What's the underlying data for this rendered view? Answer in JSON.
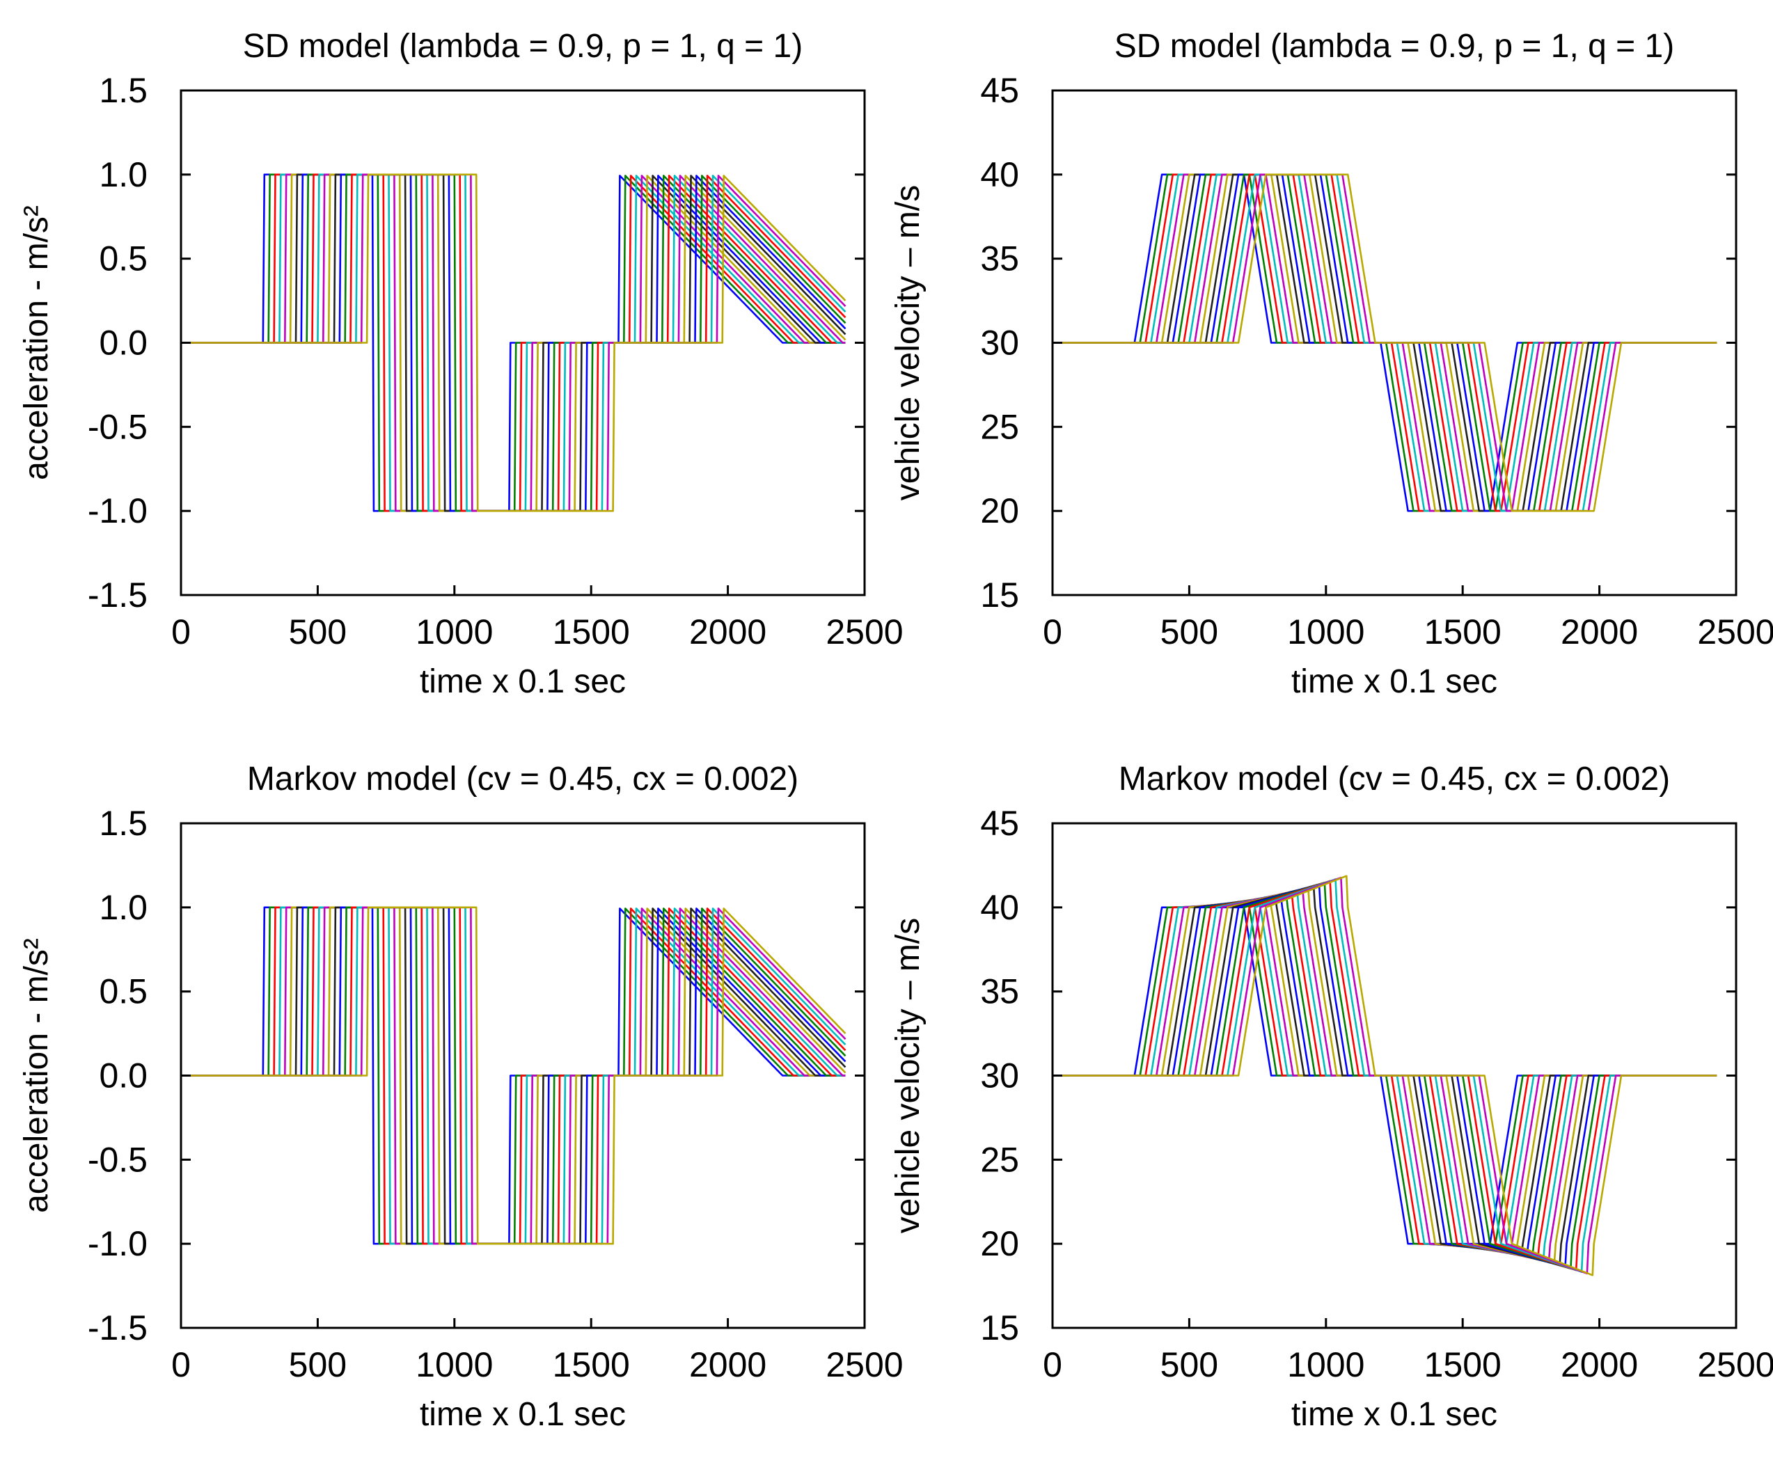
{
  "figure": {
    "panels": [
      {
        "id": "sd-acceleration",
        "title": "SD model (lambda = 0.9, p = 1, q = 1)",
        "xlabel": "time x 0.1 sec",
        "ylabel": "acceleration -  m/s²",
        "xticks": [
          "0",
          "500",
          "1000",
          "1500",
          "2000",
          "2500"
        ],
        "yticks": [
          "1.5",
          "1.0",
          "0.5",
          "0.0",
          "-0.5",
          "-1.0",
          "-1.5"
        ]
      },
      {
        "id": "sd-velocity",
        "title": "SD model (lambda = 0.9, p = 1, q = 1)",
        "xlabel": "time x 0.1 sec",
        "ylabel": "vehicle velocity – m/s",
        "xticks": [
          "0",
          "500",
          "1000",
          "1500",
          "2000",
          "2500"
        ],
        "yticks": [
          "45",
          "40",
          "35",
          "30",
          "25",
          "20",
          "15"
        ]
      },
      {
        "id": "markov-acceleration",
        "title": "Markov model (cv = 0.45, cx = 0.002)",
        "xlabel": "time x 0.1 sec",
        "ylabel": "acceleration -  m/s²",
        "xticks": [
          "0",
          "500",
          "1000",
          "1500",
          "2000",
          "2500"
        ],
        "yticks": [
          "1.5",
          "1.0",
          "0.5",
          "0.0",
          "-0.5",
          "-1.0",
          "-1.5"
        ]
      },
      {
        "id": "markov-velocity",
        "title": "Markov model (cv = 0.45, cx = 0.002)",
        "xlabel": "time x 0.1 sec",
        "ylabel": "vehicle velocity – m/s",
        "xticks": [
          "0",
          "500",
          "1000",
          "1500",
          "2000",
          "2500"
        ],
        "yticks": [
          "45",
          "40",
          "35",
          "30",
          "25",
          "20",
          "15"
        ]
      }
    ]
  },
  "chart_data": [
    {
      "type": "line",
      "title": "SD model (lambda = 0.9, p = 1, q = 1)",
      "xlabel": "time x 0.1 sec",
      "ylabel": "acceleration -  m/s²",
      "xlim": [
        0,
        2500
      ],
      "ylim": [
        -1.5,
        1.5
      ],
      "x_ticks": [
        0,
        500,
        1000,
        1500,
        2000,
        2500
      ],
      "y_ticks": [
        -1.5,
        -1.0,
        -0.5,
        0.0,
        0.5,
        1.0,
        1.5
      ],
      "grid": false,
      "legend": "none",
      "vehicle_count": 20,
      "vehicle_delay": 20,
      "series_colors": [
        "#0000ff",
        "#008000",
        "#ff0000",
        "#00bcbc",
        "#c000c0",
        "#b8a800",
        "#202020"
      ],
      "leader_acceleration": [
        [
          0,
          0
        ],
        [
          300,
          0
        ],
        [
          301,
          1.0
        ],
        [
          700,
          1.0
        ],
        [
          701,
          -1.0
        ],
        [
          1200,
          -1.0
        ],
        [
          1201,
          0
        ],
        [
          1600,
          0
        ],
        [
          1601,
          1.0
        ],
        [
          2200,
          0
        ],
        [
          2400,
          0
        ]
      ],
      "follower_extremes": {
        "max": 1.0,
        "min": -1.05,
        "last_peak_decay_to": 0.7
      }
    },
    {
      "type": "line",
      "title": "SD model (lambda = 0.9, p = 1, q = 1)",
      "xlabel": "time x 0.1 sec",
      "ylabel": "vehicle velocity – m/s",
      "xlim": [
        0,
        2500
      ],
      "ylim": [
        15,
        45
      ],
      "x_ticks": [
        0,
        500,
        1000,
        1500,
        2000,
        2500
      ],
      "y_ticks": [
        15,
        20,
        25,
        30,
        35,
        40,
        45
      ],
      "grid": false,
      "legend": "none",
      "vehicle_count": 20,
      "vehicle_delay": 20,
      "series_colors": [
        "#0000ff",
        "#008000",
        "#ff0000",
        "#00bcbc",
        "#c000c0",
        "#b8a800",
        "#202020"
      ],
      "leader_velocity": [
        [
          0,
          30
        ],
        [
          300,
          30
        ],
        [
          400,
          40
        ],
        [
          700,
          40
        ],
        [
          800,
          30
        ],
        [
          1200,
          30
        ],
        [
          1300,
          20
        ],
        [
          1600,
          20
        ],
        [
          1700,
          30
        ],
        [
          2400,
          30
        ]
      ],
      "levels": {
        "base": 30,
        "high": 40,
        "low": 20
      }
    },
    {
      "type": "line",
      "title": "Markov model (cv = 0.45, cx = 0.002)",
      "xlabel": "time x 0.1 sec",
      "ylabel": "acceleration -  m/s²",
      "xlim": [
        0,
        2500
      ],
      "ylim": [
        -1.5,
        1.5
      ],
      "x_ticks": [
        0,
        500,
        1000,
        1500,
        2000,
        2500
      ],
      "y_ticks": [
        -1.5,
        -1.0,
        -0.5,
        0.0,
        0.5,
        1.0,
        1.5
      ],
      "grid": false,
      "legend": "none",
      "vehicle_count": 20,
      "vehicle_delay": 20,
      "series_colors": [
        "#0000ff",
        "#008000",
        "#ff0000",
        "#00bcbc",
        "#c000c0",
        "#b8a800",
        "#202020"
      ],
      "leader_acceleration": [
        [
          0,
          0
        ],
        [
          300,
          0
        ],
        [
          301,
          1.0
        ],
        [
          700,
          1.0
        ],
        [
          701,
          -1.0
        ],
        [
          1200,
          -1.0
        ],
        [
          1201,
          0
        ],
        [
          1600,
          0
        ],
        [
          1601,
          1.0
        ],
        [
          2200,
          0
        ],
        [
          2400,
          0
        ]
      ],
      "follower_extremes": {
        "max": 1.0,
        "min": -1.0,
        "last_peak_decay_to": 0.7
      }
    },
    {
      "type": "line",
      "title": "Markov model (cv = 0.45, cx = 0.002)",
      "xlabel": "time x 0.1 sec",
      "ylabel": "vehicle velocity – m/s",
      "xlim": [
        0,
        2500
      ],
      "ylim": [
        15,
        45
      ],
      "x_ticks": [
        0,
        500,
        1000,
        1500,
        2000,
        2500
      ],
      "y_ticks": [
        15,
        20,
        25,
        30,
        35,
        40,
        45
      ],
      "grid": false,
      "legend": "none",
      "vehicle_count": 20,
      "vehicle_delay": 20,
      "series_colors": [
        "#0000ff",
        "#008000",
        "#ff0000",
        "#00bcbc",
        "#c000c0",
        "#b8a800",
        "#202020"
      ],
      "leader_velocity": [
        [
          0,
          30
        ],
        [
          300,
          30
        ],
        [
          400,
          40
        ],
        [
          700,
          40
        ],
        [
          800,
          30
        ],
        [
          1200,
          30
        ],
        [
          1300,
          20
        ],
        [
          1600,
          20
        ],
        [
          1700,
          30
        ],
        [
          2400,
          30
        ]
      ],
      "levels": {
        "base": 30,
        "high": 40,
        "low": 20,
        "follower_overshoot_high": 42,
        "follower_undershoot_low": 18
      }
    }
  ]
}
